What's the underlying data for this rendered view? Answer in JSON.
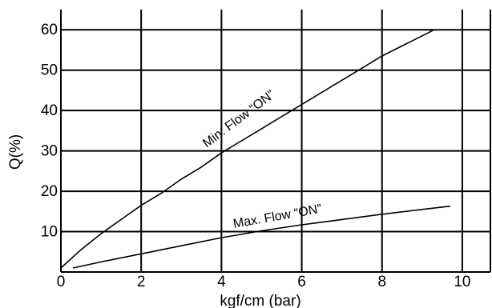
{
  "chart_data": {
    "type": "line",
    "xlabel": "kgf/cm (bar)",
    "ylabel": "Q(%)",
    "xlim": [
      0,
      10.7
    ],
    "ylim": [
      0,
      65
    ],
    "grid": true,
    "x_ticks": [
      "0",
      "2",
      "4",
      "6",
      "8",
      "10"
    ],
    "y_ticks": [
      "10",
      "20",
      "30",
      "40",
      "50",
      "60"
    ],
    "series": [
      {
        "name": "Min. Flow “ON”",
        "x": [
          0,
          0.5,
          1,
          1.5,
          2,
          2.5,
          3,
          3.5,
          4,
          4.5,
          5,
          5.5,
          6,
          6.5,
          7,
          7.5,
          8,
          8.5,
          9,
          9.3
        ],
        "y": [
          1,
          5.5,
          9.5,
          13,
          16.5,
          19.5,
          23,
          26,
          29.5,
          32.5,
          35.5,
          38.5,
          41.5,
          44.5,
          47.5,
          50.5,
          53.5,
          56,
          58.5,
          60
        ]
      },
      {
        "name": "Max. Flow “ON”",
        "x": [
          0.3,
          1,
          2,
          3,
          4,
          5,
          6,
          7,
          8,
          9,
          9.7
        ],
        "y": [
          1,
          2.5,
          4.5,
          6.5,
          8.5,
          10.2,
          11.7,
          13,
          14.3,
          15.5,
          16.3
        ]
      }
    ]
  }
}
